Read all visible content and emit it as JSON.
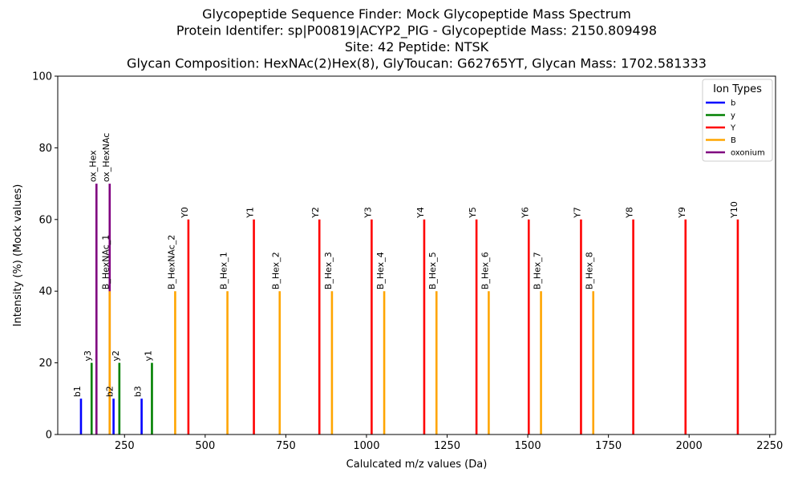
{
  "chart_data": {
    "type": "bar",
    "title_lines": [
      "Glycopeptide Sequence Finder: Mock Glycopeptide Mass Spectrum",
      "Protein Identifer: sp|P00819|ACYP2_PIG - Glycopeptide Mass: 2150.809498",
      "Site: 42 Peptide: NTSK",
      "Glycan Composition: HexNAc(2)Hex(8), GlyToucan: G62765YT, Glycan Mass: 1702.581333"
    ],
    "xlabel": "Calulcated m/z values (Da)",
    "ylabel": "Intensity (%) (Mock values)",
    "xlim": [
      43,
      2268
    ],
    "ylim": [
      0,
      100
    ],
    "x_ticks": [
      250,
      500,
      750,
      1000,
      1250,
      1500,
      1750,
      2000,
      2250
    ],
    "y_ticks": [
      0,
      20,
      40,
      60,
      80,
      100
    ],
    "legend": {
      "title": "Ion Types",
      "position": "top-right",
      "entries": [
        {
          "name": "b",
          "color": "#0000ff"
        },
        {
          "name": "y",
          "color": "#008000"
        },
        {
          "name": "Y",
          "color": "#ff0000"
        },
        {
          "name": "B",
          "color": "#ffa500"
        },
        {
          "name": "oxonium",
          "color": "#800080"
        }
      ]
    },
    "peaks": [
      {
        "label": "b1",
        "mz": 115,
        "intensity": 10,
        "type": "b"
      },
      {
        "label": "y3",
        "mz": 148,
        "intensity": 20,
        "type": "y"
      },
      {
        "label": "ox_Hex",
        "mz": 163,
        "intensity": 70,
        "type": "oxonium"
      },
      {
        "label": "ox_HexNAc",
        "mz": 204,
        "intensity": 70,
        "type": "oxonium"
      },
      {
        "label": "B_HexNAc_1",
        "mz": 204,
        "intensity": 40,
        "type": "B"
      },
      {
        "label": "b2",
        "mz": 216,
        "intensity": 10,
        "type": "b"
      },
      {
        "label": "y2",
        "mz": 234,
        "intensity": 20,
        "type": "y"
      },
      {
        "label": "b3",
        "mz": 303,
        "intensity": 10,
        "type": "b"
      },
      {
        "label": "y1",
        "mz": 335,
        "intensity": 20,
        "type": "y"
      },
      {
        "label": "B_HexNAc_2",
        "mz": 407,
        "intensity": 40,
        "type": "B"
      },
      {
        "label": "Y0",
        "mz": 448,
        "intensity": 60,
        "type": "Y"
      },
      {
        "label": "B_Hex_1",
        "mz": 569,
        "intensity": 40,
        "type": "B"
      },
      {
        "label": "Y1",
        "mz": 651,
        "intensity": 60,
        "type": "Y"
      },
      {
        "label": "B_Hex_2",
        "mz": 731,
        "intensity": 40,
        "type": "B"
      },
      {
        "label": "Y2",
        "mz": 854,
        "intensity": 60,
        "type": "Y"
      },
      {
        "label": "B_Hex_3",
        "mz": 893,
        "intensity": 40,
        "type": "B"
      },
      {
        "label": "Y3",
        "mz": 1016,
        "intensity": 60,
        "type": "Y"
      },
      {
        "label": "B_Hex_4",
        "mz": 1055,
        "intensity": 40,
        "type": "B"
      },
      {
        "label": "Y4",
        "mz": 1179,
        "intensity": 60,
        "type": "Y"
      },
      {
        "label": "B_Hex_5",
        "mz": 1217,
        "intensity": 40,
        "type": "B"
      },
      {
        "label": "Y5",
        "mz": 1341,
        "intensity": 60,
        "type": "Y"
      },
      {
        "label": "B_Hex_6",
        "mz": 1379,
        "intensity": 40,
        "type": "B"
      },
      {
        "label": "Y6",
        "mz": 1503,
        "intensity": 60,
        "type": "Y"
      },
      {
        "label": "B_Hex_7",
        "mz": 1541,
        "intensity": 40,
        "type": "B"
      },
      {
        "label": "Y7",
        "mz": 1665,
        "intensity": 60,
        "type": "Y"
      },
      {
        "label": "B_Hex_8",
        "mz": 1703,
        "intensity": 40,
        "type": "B"
      },
      {
        "label": "Y8",
        "mz": 1827,
        "intensity": 60,
        "type": "Y"
      },
      {
        "label": "Y9",
        "mz": 1989,
        "intensity": 60,
        "type": "Y"
      },
      {
        "label": "Y10",
        "mz": 2151,
        "intensity": 60,
        "type": "Y"
      }
    ]
  }
}
